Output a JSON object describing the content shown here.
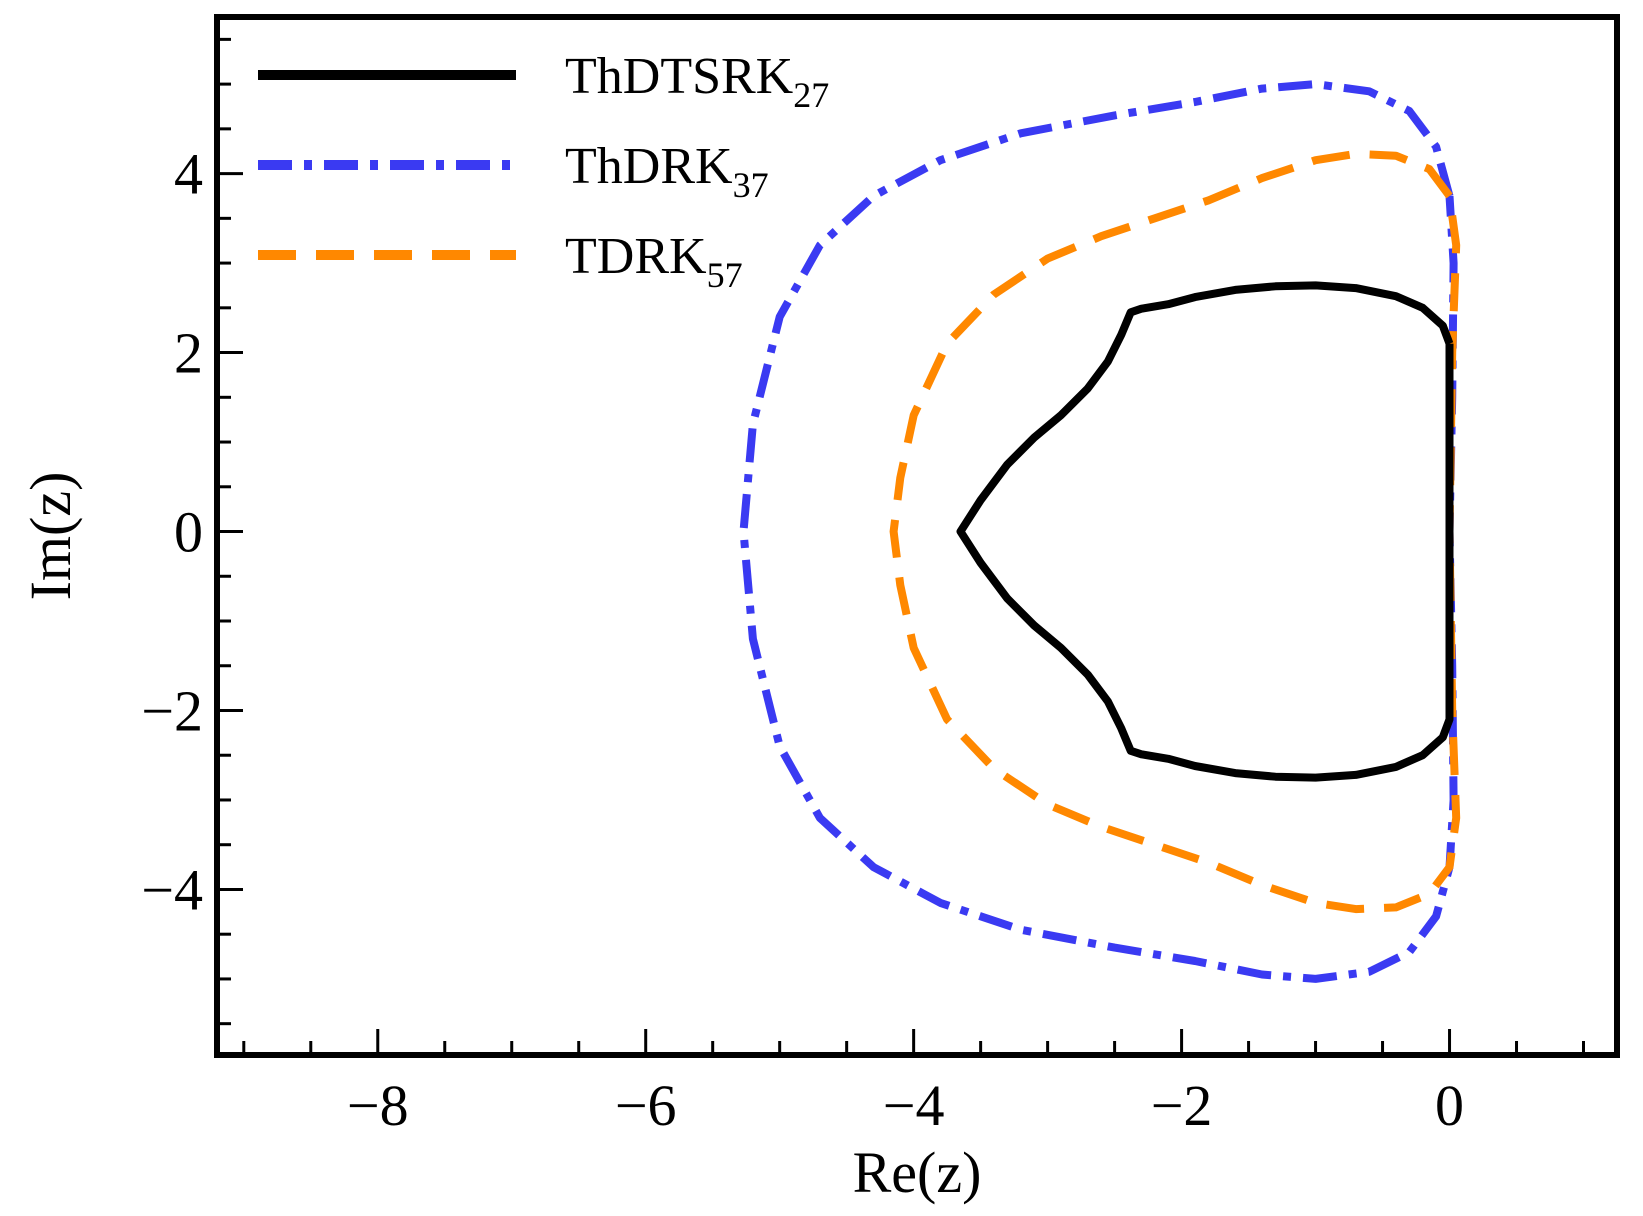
{
  "chart_data": {
    "type": "line",
    "title": "",
    "xlabel": "Re(z)",
    "ylabel": "Im(z)",
    "xlim": [
      -9.2,
      1.25
    ],
    "ylim": [
      -5.85,
      5.75
    ],
    "grid": false,
    "legend_position": "top-left",
    "x_ticks": [
      -8,
      -6,
      -4,
      -2,
      0
    ],
    "x_tick_labels": [
      "−8",
      "−6",
      "−4",
      "−2",
      "0"
    ],
    "y_ticks": [
      -4,
      -2,
      0,
      2,
      4
    ],
    "y_tick_labels": [
      "−4",
      "−2",
      "0",
      "2",
      "4"
    ],
    "x_minor_step": 0.5,
    "y_minor_step": 0.5,
    "series": [
      {
        "name": "ThDTSRK",
        "subscript": "27",
        "color": "#000000",
        "style": "solid",
        "points": [
          [
            0.0,
            2.1
          ],
          [
            -0.05,
            2.3
          ],
          [
            -0.2,
            2.5
          ],
          [
            -0.4,
            2.63
          ],
          [
            -0.7,
            2.72
          ],
          [
            -1.0,
            2.75
          ],
          [
            -1.3,
            2.74
          ],
          [
            -1.6,
            2.7
          ],
          [
            -1.9,
            2.62
          ],
          [
            -2.1,
            2.54
          ],
          [
            -2.3,
            2.49
          ],
          [
            -2.38,
            2.45
          ],
          [
            -2.45,
            2.2
          ],
          [
            -2.55,
            1.9
          ],
          [
            -2.7,
            1.6
          ],
          [
            -2.9,
            1.3
          ],
          [
            -3.1,
            1.05
          ],
          [
            -3.3,
            0.75
          ],
          [
            -3.5,
            0.35
          ],
          [
            -3.65,
            0.0
          ],
          [
            -3.5,
            -0.35
          ],
          [
            -3.3,
            -0.75
          ],
          [
            -3.1,
            -1.05
          ],
          [
            -2.9,
            -1.3
          ],
          [
            -2.7,
            -1.6
          ],
          [
            -2.55,
            -1.9
          ],
          [
            -2.45,
            -2.2
          ],
          [
            -2.38,
            -2.45
          ],
          [
            -2.3,
            -2.49
          ],
          [
            -2.1,
            -2.54
          ],
          [
            -1.9,
            -2.62
          ],
          [
            -1.6,
            -2.7
          ],
          [
            -1.3,
            -2.74
          ],
          [
            -1.0,
            -2.75
          ],
          [
            -0.7,
            -2.72
          ],
          [
            -0.4,
            -2.63
          ],
          [
            -0.2,
            -2.5
          ],
          [
            -0.05,
            -2.3
          ],
          [
            0.0,
            -2.1
          ],
          [
            0.0,
            0.0
          ],
          [
            0.0,
            2.1
          ]
        ]
      },
      {
        "name": "ThDRK",
        "subscript": "37",
        "color": "#3a3af2",
        "style": "dashdot",
        "points": [
          [
            0.0,
            3.75
          ],
          [
            -0.1,
            4.3
          ],
          [
            -0.3,
            4.7
          ],
          [
            -0.6,
            4.92
          ],
          [
            -1.0,
            5.0
          ],
          [
            -1.4,
            4.95
          ],
          [
            -1.9,
            4.8
          ],
          [
            -2.5,
            4.65
          ],
          [
            -3.2,
            4.45
          ],
          [
            -3.8,
            4.15
          ],
          [
            -4.3,
            3.75
          ],
          [
            -4.7,
            3.2
          ],
          [
            -5.0,
            2.4
          ],
          [
            -5.2,
            1.2
          ],
          [
            -5.27,
            0.0
          ],
          [
            -5.2,
            -1.2
          ],
          [
            -5.0,
            -2.4
          ],
          [
            -4.7,
            -3.2
          ],
          [
            -4.3,
            -3.75
          ],
          [
            -3.8,
            -4.15
          ],
          [
            -3.2,
            -4.45
          ],
          [
            -2.5,
            -4.65
          ],
          [
            -1.9,
            -4.8
          ],
          [
            -1.4,
            -4.95
          ],
          [
            -1.0,
            -5.0
          ],
          [
            -0.6,
            -4.92
          ],
          [
            -0.3,
            -4.7
          ],
          [
            -0.1,
            -4.3
          ],
          [
            0.0,
            -3.75
          ],
          [
            0.03,
            -3.0
          ],
          [
            0.02,
            -1.5
          ],
          [
            0.0,
            0.0
          ],
          [
            0.02,
            1.5
          ],
          [
            0.03,
            3.0
          ],
          [
            0.0,
            3.75
          ]
        ]
      },
      {
        "name": "TDRK",
        "subscript": "57",
        "color": "#ff8800",
        "style": "dash",
        "points": [
          [
            0.0,
            3.75
          ],
          [
            -0.15,
            4.05
          ],
          [
            -0.4,
            4.2
          ],
          [
            -0.7,
            4.22
          ],
          [
            -1.0,
            4.15
          ],
          [
            -1.4,
            3.95
          ],
          [
            -1.8,
            3.7
          ],
          [
            -2.2,
            3.5
          ],
          [
            -2.6,
            3.3
          ],
          [
            -3.0,
            3.05
          ],
          [
            -3.4,
            2.65
          ],
          [
            -3.75,
            2.1
          ],
          [
            -4.0,
            1.3
          ],
          [
            -4.1,
            0.6
          ],
          [
            -4.15,
            0.0
          ],
          [
            -4.1,
            -0.6
          ],
          [
            -4.0,
            -1.3
          ],
          [
            -3.75,
            -2.1
          ],
          [
            -3.4,
            -2.65
          ],
          [
            -3.0,
            -3.05
          ],
          [
            -2.6,
            -3.3
          ],
          [
            -2.2,
            -3.5
          ],
          [
            -1.8,
            -3.7
          ],
          [
            -1.4,
            -3.95
          ],
          [
            -1.0,
            -4.15
          ],
          [
            -0.7,
            -4.22
          ],
          [
            -0.4,
            -4.2
          ],
          [
            -0.15,
            -4.05
          ],
          [
            0.0,
            -3.75
          ],
          [
            0.05,
            -3.2
          ],
          [
            0.02,
            -2.0
          ],
          [
            0.0,
            0.0
          ],
          [
            0.02,
            2.0
          ],
          [
            0.05,
            3.2
          ],
          [
            0.0,
            3.75
          ]
        ]
      }
    ]
  }
}
